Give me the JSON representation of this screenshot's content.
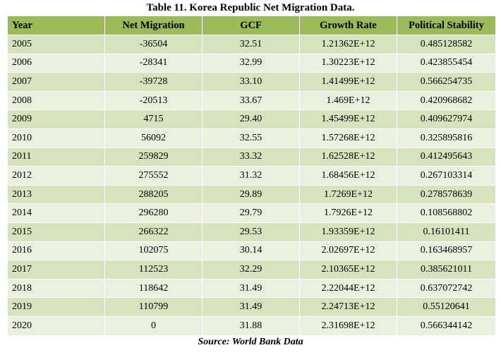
{
  "title": "Table 11. Korea Republic Net Migration Data.",
  "headers": [
    "Year",
    "Net Migration",
    "GCF",
    "Growth Rate",
    "Political Stability"
  ],
  "rows": [
    [
      "2005",
      "-36504",
      "32.51",
      "1.21362E+12",
      "0.485128582"
    ],
    [
      "2006",
      "-28341",
      "32.99",
      "1.30223E+12",
      "0.423855454"
    ],
    [
      "2007",
      "-39728",
      "33.10",
      "1.41499E+12",
      "0.566254735"
    ],
    [
      "2008",
      "-20513",
      "33.67",
      "1.469E+12",
      "0.420968682"
    ],
    [
      "2009",
      "4715",
      "29.40",
      "1.45499E+12",
      "0.409627974"
    ],
    [
      "2010",
      "56092",
      "32.55",
      "1.57268E+12",
      "0.325895816"
    ],
    [
      "2011",
      "259829",
      "33.32",
      "1.62528E+12",
      "0.412495643"
    ],
    [
      "2012",
      "275552",
      "31.32",
      "1.68456E+12",
      "0.267103314"
    ],
    [
      "2013",
      "288205",
      "29.89",
      "1.7269E+12",
      "0.278578639"
    ],
    [
      "2014",
      "296280",
      "29.79",
      "1.7926E+12",
      "0.108568802"
    ],
    [
      "2015",
      "266322",
      "29.53",
      "1.93359E+12",
      "0.16101411"
    ],
    [
      "2016",
      "102075",
      "30.14",
      "2.02697E+12",
      "0.163468957"
    ],
    [
      "2017",
      "112523",
      "32.29",
      "2.10365E+12",
      "0.385621011"
    ],
    [
      "2018",
      "118642",
      "31.49",
      "2.22044E+12",
      "0.637072742"
    ],
    [
      "2019",
      "110799",
      "31.49",
      "2.24713E+12",
      "0.55120641"
    ],
    [
      "2020",
      "0",
      "31.88",
      "2.31698E+12",
      "0.566344142"
    ]
  ],
  "source": "Source: World Bank Data",
  "colors": {
    "header_bg": "#9bbb59",
    "row_odd_bg": "#d6e3bc",
    "row_even_bg": "#ebf1de"
  }
}
